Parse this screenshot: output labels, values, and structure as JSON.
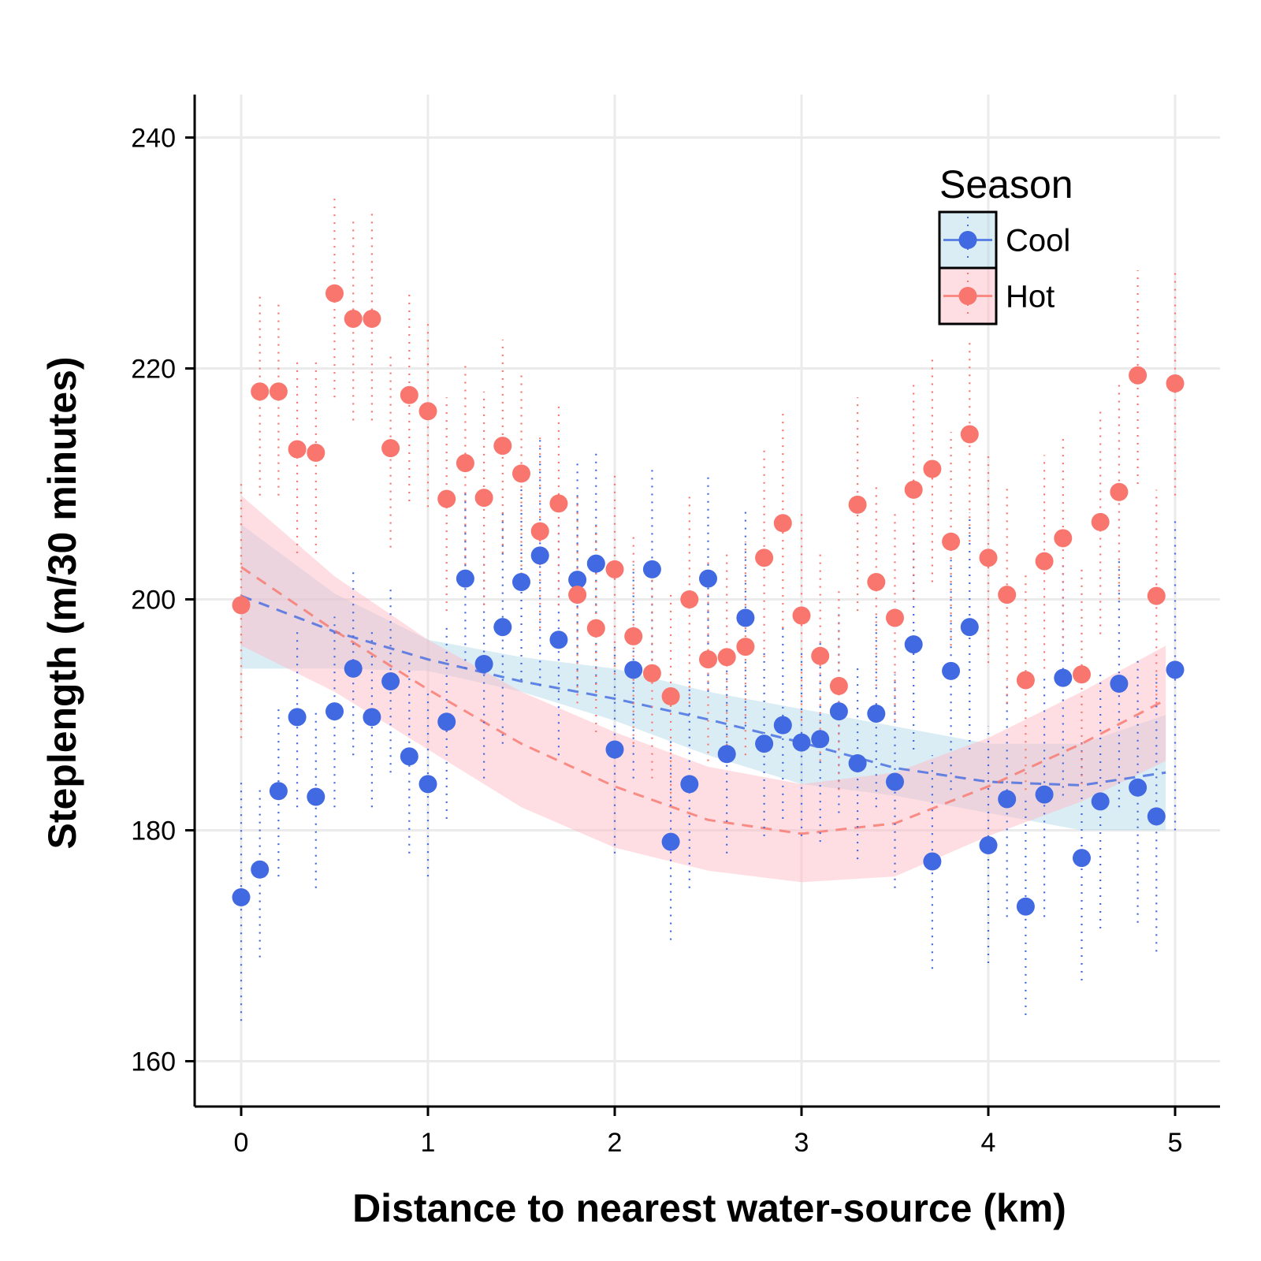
{
  "chart_data": {
    "type": "scatter",
    "title": "",
    "xlabel": "Distance to nearest water-source (km)",
    "ylabel": "Steplength (m/30 minutes)",
    "xlim": [
      -0.25,
      5.25
    ],
    "ylim": [
      156,
      244
    ],
    "x_ticks": [
      0,
      1,
      2,
      3,
      4,
      5
    ],
    "x_tick_labels": [
      "0",
      "1",
      "2",
      "3",
      "4",
      "5"
    ],
    "y_ticks": [
      160,
      180,
      200,
      220,
      240
    ],
    "y_tick_labels": [
      "160",
      "180",
      "200",
      "220",
      "240"
    ],
    "grid": true,
    "legend": {
      "title": "Season",
      "placement": "top-right",
      "entries": [
        "Cool",
        "Hot"
      ]
    },
    "x": [
      0,
      0.1,
      0.2,
      0.3,
      0.4,
      0.5,
      0.6,
      0.7,
      0.8,
      0.9,
      1.0,
      1.1,
      1.2,
      1.3,
      1.4,
      1.5,
      1.6,
      1.7,
      1.8,
      1.9,
      2.0,
      2.1,
      2.2,
      2.3,
      2.4,
      2.5,
      2.6,
      2.7,
      2.8,
      2.9,
      3.0,
      3.1,
      3.2,
      3.3,
      3.4,
      3.5,
      3.6,
      3.7,
      3.8,
      3.9,
      4.0,
      4.1,
      4.2,
      4.3,
      4.4,
      4.5,
      4.6,
      4.7,
      4.8,
      4.9,
      5.0
    ],
    "series": [
      {
        "name": "Cool",
        "color": "#4169E1",
        "y": [
          174.2,
          176.6,
          183.4,
          189.8,
          182.9,
          190.3,
          194.0,
          189.8,
          192.9,
          186.4,
          184.0,
          189.4,
          201.8,
          194.4,
          197.6,
          201.5,
          203.8,
          196.5,
          201.7,
          203.1,
          187.0,
          193.9,
          202.6,
          179.0,
          184.0,
          201.8,
          186.6,
          198.4,
          187.5,
          189.1,
          187.6,
          187.9,
          190.3,
          185.8,
          190.1,
          184.2,
          196.1,
          177.3,
          193.8,
          197.6,
          178.7,
          182.7,
          173.4,
          183.1,
          193.2,
          177.6,
          182.5,
          192.7,
          183.7,
          181.2,
          193.9
        ],
        "err_lo": [
          163.5,
          169.0,
          176.0,
          182.0,
          175.0,
          182.0,
          186.5,
          182.0,
          185.0,
          178.0,
          176.0,
          181.0,
          194.0,
          184.5,
          187.5,
          193.0,
          192.5,
          186.5,
          192.5,
          192.0,
          178.0,
          184.5,
          194.0,
          170.5,
          175.0,
          192.0,
          178.0,
          189.0,
          179.5,
          181.0,
          179.5,
          179.0,
          181.5,
          177.5,
          182.0,
          175.0,
          187.0,
          168.0,
          183.5,
          187.0,
          168.5,
          172.5,
          164.0,
          172.5,
          183.0,
          167.0,
          171.5,
          182.0,
          172.0,
          169.5,
          180.0
        ],
        "err_hi": [
          184.5,
          184.0,
          190.5,
          197.5,
          190.5,
          198.5,
          202.5,
          197.5,
          201.0,
          195.0,
          192.0,
          198.0,
          209.5,
          204.0,
          207.5,
          210.0,
          214.0,
          206.5,
          212.0,
          213.0,
          196.0,
          203.0,
          211.5,
          188.0,
          193.0,
          211.0,
          195.0,
          208.0,
          195.5,
          197.5,
          195.5,
          196.5,
          199.0,
          194.5,
          198.5,
          193.5,
          205.0,
          186.5,
          203.5,
          207.5,
          189.0,
          193.0,
          183.0,
          193.5,
          203.0,
          188.0,
          193.5,
          203.5,
          195.0,
          193.5,
          207.0
        ],
        "trend_x": [
          0,
          0.5,
          1.0,
          1.5,
          2.0,
          2.5,
          3.0,
          3.5,
          4.0,
          4.5,
          4.95
        ],
        "trend_y": [
          200.3,
          197.2,
          194.8,
          192.9,
          191.4,
          189.6,
          187.6,
          185.4,
          184.2,
          183.9,
          185.0
        ],
        "band_lo": [
          194.0,
          194.0,
          193.8,
          192.0,
          189.5,
          186.5,
          184.0,
          183.0,
          181.5,
          180.0,
          180.0
        ],
        "band_hi": [
          206.5,
          200.5,
          196.5,
          195.0,
          194.0,
          192.0,
          190.5,
          189.0,
          187.5,
          187.5,
          190.0
        ]
      },
      {
        "name": "Hot",
        "color": "#F8766D",
        "y": [
          199.5,
          218.0,
          218.0,
          213.0,
          212.7,
          226.5,
          224.3,
          224.3,
          213.1,
          217.7,
          216.3,
          208.7,
          211.8,
          208.8,
          213.3,
          210.9,
          205.9,
          208.3,
          200.4,
          197.5,
          202.6,
          196.8,
          193.6,
          191.6,
          200.0,
          194.8,
          195.0,
          195.9,
          203.6,
          206.6,
          198.6,
          195.1,
          192.5,
          208.2,
          201.5,
          198.4,
          209.5,
          211.3,
          205.0,
          214.3,
          203.6,
          200.4,
          193.0,
          203.3,
          205.3,
          193.5,
          206.7,
          209.3,
          219.4,
          200.3,
          218.7
        ],
        "err_lo": [
          188.0,
          209.0,
          209.0,
          204.0,
          204.0,
          217.5,
          215.5,
          215.5,
          204.5,
          208.5,
          208.0,
          199.0,
          203.0,
          199.5,
          204.0,
          201.5,
          197.5,
          199.5,
          191.0,
          188.5,
          193.5,
          187.5,
          184.5,
          182.5,
          191.0,
          186.0,
          186.0,
          186.5,
          195.0,
          197.5,
          189.5,
          186.0,
          183.5,
          199.0,
          192.5,
          189.5,
          200.0,
          201.5,
          196.0,
          205.0,
          194.5,
          191.0,
          183.5,
          194.0,
          196.0,
          184.0,
          197.0,
          200.0,
          210.0,
          191.0,
          209.0
        ],
        "err_hi": [
          210.5,
          226.5,
          226.0,
          221.0,
          221.0,
          235.0,
          233.0,
          233.5,
          221.5,
          226.5,
          224.0,
          217.5,
          220.5,
          218.0,
          222.5,
          219.5,
          214.0,
          217.0,
          209.0,
          206.5,
          211.0,
          205.5,
          202.5,
          200.5,
          209.0,
          203.5,
          204.0,
          205.0,
          213.0,
          216.5,
          207.5,
          204.0,
          201.0,
          217.5,
          210.0,
          207.5,
          219.0,
          221.0,
          214.5,
          222.5,
          212.5,
          210.0,
          202.5,
          212.5,
          214.0,
          203.0,
          216.5,
          219.0,
          228.5,
          209.5,
          228.5
        ],
        "trend_x": [
          0,
          0.5,
          1.0,
          1.5,
          2.0,
          2.5,
          3.0,
          3.5,
          4.0,
          4.5,
          4.95
        ],
        "trend_y": [
          202.8,
          197.3,
          192.2,
          187.5,
          183.8,
          180.9,
          179.7,
          180.6,
          183.8,
          187.5,
          191.3
        ],
        "band_lo": [
          196.0,
          192.0,
          187.0,
          182.0,
          178.5,
          176.5,
          175.5,
          176.0,
          179.5,
          182.5,
          186.0
        ],
        "band_hi": [
          209.0,
          202.0,
          196.5,
          192.0,
          188.5,
          185.5,
          184.0,
          185.0,
          188.0,
          192.0,
          196.0
        ]
      }
    ]
  }
}
